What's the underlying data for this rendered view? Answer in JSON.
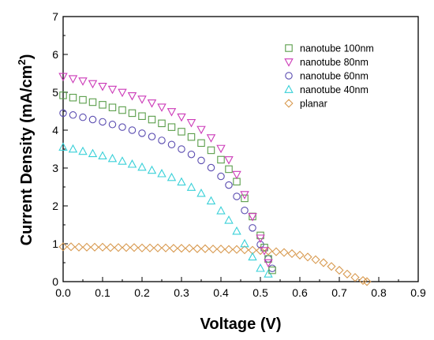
{
  "chart_data": {
    "type": "scatter",
    "xlabel": "Voltage (V)",
    "ylabel_main": "Current Density (mA/cm",
    "ylabel_sup": "2",
    "ylabel_close": ")",
    "xlim": [
      0.0,
      0.9
    ],
    "ylim": [
      0,
      7
    ],
    "xticks": [
      "0.0",
      "0.1",
      "0.2",
      "0.3",
      "0.4",
      "0.5",
      "0.6",
      "0.7",
      "0.8",
      "0.9"
    ],
    "yticks": [
      "0",
      "1",
      "2",
      "3",
      "4",
      "5",
      "6",
      "7"
    ],
    "grid": false,
    "legend_position": "top-right",
    "series": [
      {
        "name": "nanotube 100nm",
        "marker": "square",
        "color": "#5a9e4a",
        "x": [
          0.0,
          0.025,
          0.05,
          0.075,
          0.1,
          0.125,
          0.15,
          0.175,
          0.2,
          0.225,
          0.25,
          0.275,
          0.3,
          0.325,
          0.35,
          0.375,
          0.4,
          0.42,
          0.44,
          0.46,
          0.48,
          0.5,
          0.51,
          0.52,
          0.53
        ],
        "y": [
          4.92,
          4.86,
          4.8,
          4.74,
          4.67,
          4.6,
          4.53,
          4.45,
          4.37,
          4.28,
          4.18,
          4.08,
          3.96,
          3.82,
          3.66,
          3.47,
          3.22,
          2.97,
          2.64,
          2.2,
          1.72,
          1.22,
          0.9,
          0.6,
          0.3
        ]
      },
      {
        "name": "nanotube 80nm",
        "marker": "triangle-down",
        "color": "#cc3ab8",
        "x": [
          0.0,
          0.025,
          0.05,
          0.075,
          0.1,
          0.125,
          0.15,
          0.175,
          0.2,
          0.225,
          0.25,
          0.275,
          0.3,
          0.325,
          0.35,
          0.375,
          0.4,
          0.42,
          0.44,
          0.46,
          0.48,
          0.5,
          0.51,
          0.52
        ],
        "y": [
          5.42,
          5.36,
          5.3,
          5.23,
          5.16,
          5.08,
          5.0,
          4.91,
          4.82,
          4.72,
          4.61,
          4.49,
          4.35,
          4.2,
          4.02,
          3.8,
          3.52,
          3.22,
          2.83,
          2.3,
          1.72,
          1.15,
          0.82,
          0.5
        ]
      },
      {
        "name": "nanotube 60nm",
        "marker": "circle",
        "color": "#5a4cb0",
        "x": [
          0.0,
          0.025,
          0.05,
          0.075,
          0.1,
          0.125,
          0.15,
          0.175,
          0.2,
          0.225,
          0.25,
          0.275,
          0.3,
          0.325,
          0.35,
          0.375,
          0.4,
          0.42,
          0.44,
          0.46,
          0.48,
          0.5,
          0.52,
          0.53
        ],
        "y": [
          4.45,
          4.4,
          4.34,
          4.28,
          4.22,
          4.15,
          4.08,
          4.0,
          3.92,
          3.83,
          3.73,
          3.62,
          3.5,
          3.36,
          3.2,
          3.01,
          2.78,
          2.55,
          2.25,
          1.88,
          1.42,
          0.98,
          0.6,
          0.35
        ]
      },
      {
        "name": "nanotube 40nm",
        "marker": "triangle-up",
        "color": "#38d0d8",
        "x": [
          0.0,
          0.025,
          0.05,
          0.075,
          0.1,
          0.125,
          0.15,
          0.175,
          0.2,
          0.225,
          0.25,
          0.275,
          0.3,
          0.325,
          0.35,
          0.375,
          0.4,
          0.42,
          0.44,
          0.46,
          0.48,
          0.5,
          0.52
        ],
        "y": [
          3.55,
          3.5,
          3.44,
          3.38,
          3.32,
          3.25,
          3.18,
          3.1,
          3.02,
          2.94,
          2.85,
          2.75,
          2.63,
          2.49,
          2.33,
          2.13,
          1.87,
          1.62,
          1.33,
          1.0,
          0.65,
          0.35,
          0.2
        ]
      },
      {
        "name": "planar",
        "marker": "diamond",
        "color": "#d89a50",
        "x": [
          0.0,
          0.02,
          0.04,
          0.06,
          0.08,
          0.1,
          0.12,
          0.14,
          0.16,
          0.18,
          0.2,
          0.22,
          0.24,
          0.26,
          0.28,
          0.3,
          0.32,
          0.34,
          0.36,
          0.38,
          0.4,
          0.42,
          0.44,
          0.46,
          0.48,
          0.5,
          0.52,
          0.54,
          0.56,
          0.58,
          0.6,
          0.62,
          0.64,
          0.66,
          0.68,
          0.7,
          0.72,
          0.74,
          0.76,
          0.77
        ],
        "y": [
          0.92,
          0.92,
          0.91,
          0.91,
          0.91,
          0.91,
          0.9,
          0.9,
          0.9,
          0.9,
          0.89,
          0.89,
          0.89,
          0.89,
          0.88,
          0.88,
          0.88,
          0.87,
          0.87,
          0.86,
          0.86,
          0.85,
          0.85,
          0.84,
          0.83,
          0.82,
          0.81,
          0.79,
          0.77,
          0.74,
          0.7,
          0.65,
          0.58,
          0.5,
          0.4,
          0.3,
          0.2,
          0.11,
          0.03,
          0.0
        ]
      }
    ]
  }
}
